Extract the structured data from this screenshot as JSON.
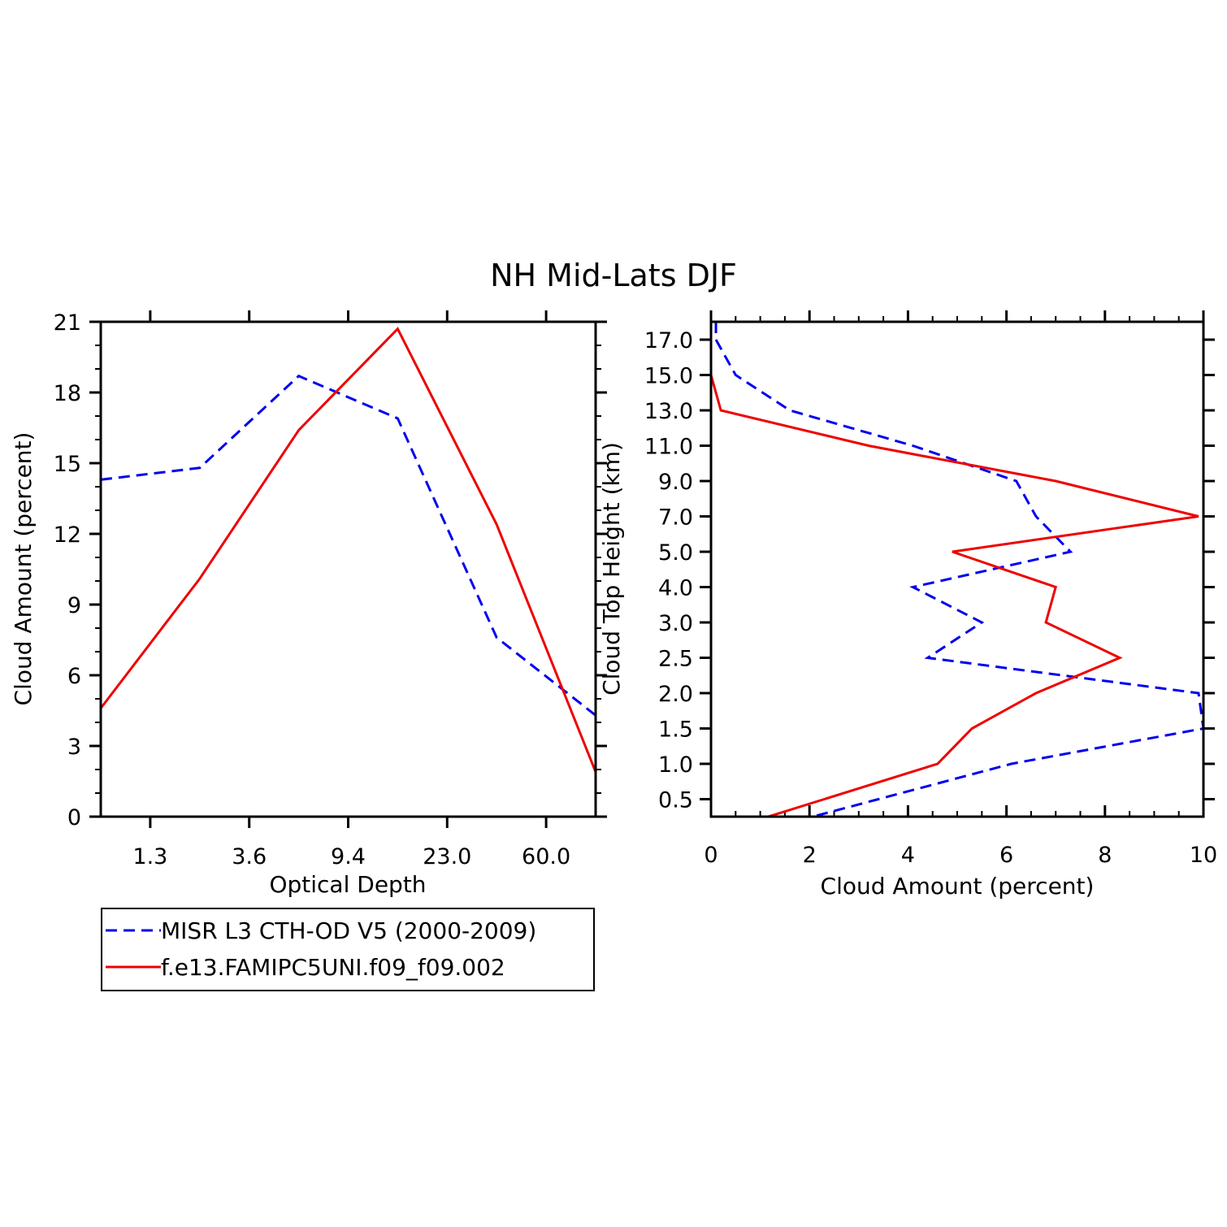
{
  "figure_title": "NH Mid-Lats DJF",
  "colors": {
    "misr": "#0000ee",
    "model": "#ee0000",
    "axis": "#000000"
  },
  "legend": {
    "position": "below-left",
    "entries": [
      {
        "label": "MISR L3 CTH-OD V5 (2000-2009)",
        "color": "#0000ee",
        "style": "dashed"
      },
      {
        "label": "f.e13.FAMIPC5UNI.f09_f09.002",
        "color": "#ee0000",
        "style": "solid"
      }
    ]
  },
  "chart_data": [
    {
      "type": "line",
      "xlabel": "Optical Depth",
      "ylabel": "Cloud Amount (percent)",
      "x_tick_labels": [
        "1.3",
        "3.6",
        "9.4",
        "23.0",
        "60.0"
      ],
      "x_categories": [
        "0.3-1.3",
        "1.3-3.6",
        "3.6-9.4",
        "9.4-23.0",
        "23.0-60.0",
        "60.0+"
      ],
      "y_ticks": [
        0,
        3,
        6,
        9,
        12,
        15,
        18,
        21
      ],
      "ylim": [
        0,
        21
      ],
      "grid": false,
      "series": [
        {
          "name": "MISR L3 CTH-OD V5 (2000-2009)",
          "style": "dashed",
          "values": [
            14.3,
            14.8,
            18.7,
            16.9,
            7.6,
            4.3
          ]
        },
        {
          "name": "f.e13.FAMIPC5UNI.f09_f09.002",
          "style": "solid",
          "values": [
            4.6,
            10.1,
            16.4,
            20.7,
            12.4,
            1.9
          ]
        }
      ]
    },
    {
      "type": "line",
      "orientation": "horizontal-profile",
      "xlabel": "Cloud Amount (percent)",
      "ylabel": "Cloud Top Height (km)",
      "x_ticks": [
        0,
        2,
        4,
        6,
        8,
        10
      ],
      "xlim": [
        0,
        10
      ],
      "y_tick_labels": [
        "0.5",
        "1.0",
        "1.5",
        "2.0",
        "2.5",
        "3.0",
        "4.0",
        "5.0",
        "7.0",
        "9.0",
        "11.0",
        "13.0",
        "15.0",
        "17.0"
      ],
      "grid": false,
      "series": [
        {
          "name": "MISR L3 CTH-OD V5 (2000-2009)",
          "style": "dashed",
          "values": [
            3.4,
            6.1,
            10.0,
            9.9,
            4.4,
            5.5,
            4.1,
            7.3,
            6.6,
            6.2,
            4.1,
            1.6,
            0.5,
            0.1
          ]
        },
        {
          "name": "f.e13.FAMIPC5UNI.f09_f09.002",
          "style": "solid",
          "values": [
            2.3,
            4.6,
            5.3,
            6.6,
            8.3,
            6.8,
            7.0,
            4.9,
            9.9,
            7.0,
            3.2,
            0.2,
            0.0,
            0.0
          ]
        }
      ]
    }
  ]
}
